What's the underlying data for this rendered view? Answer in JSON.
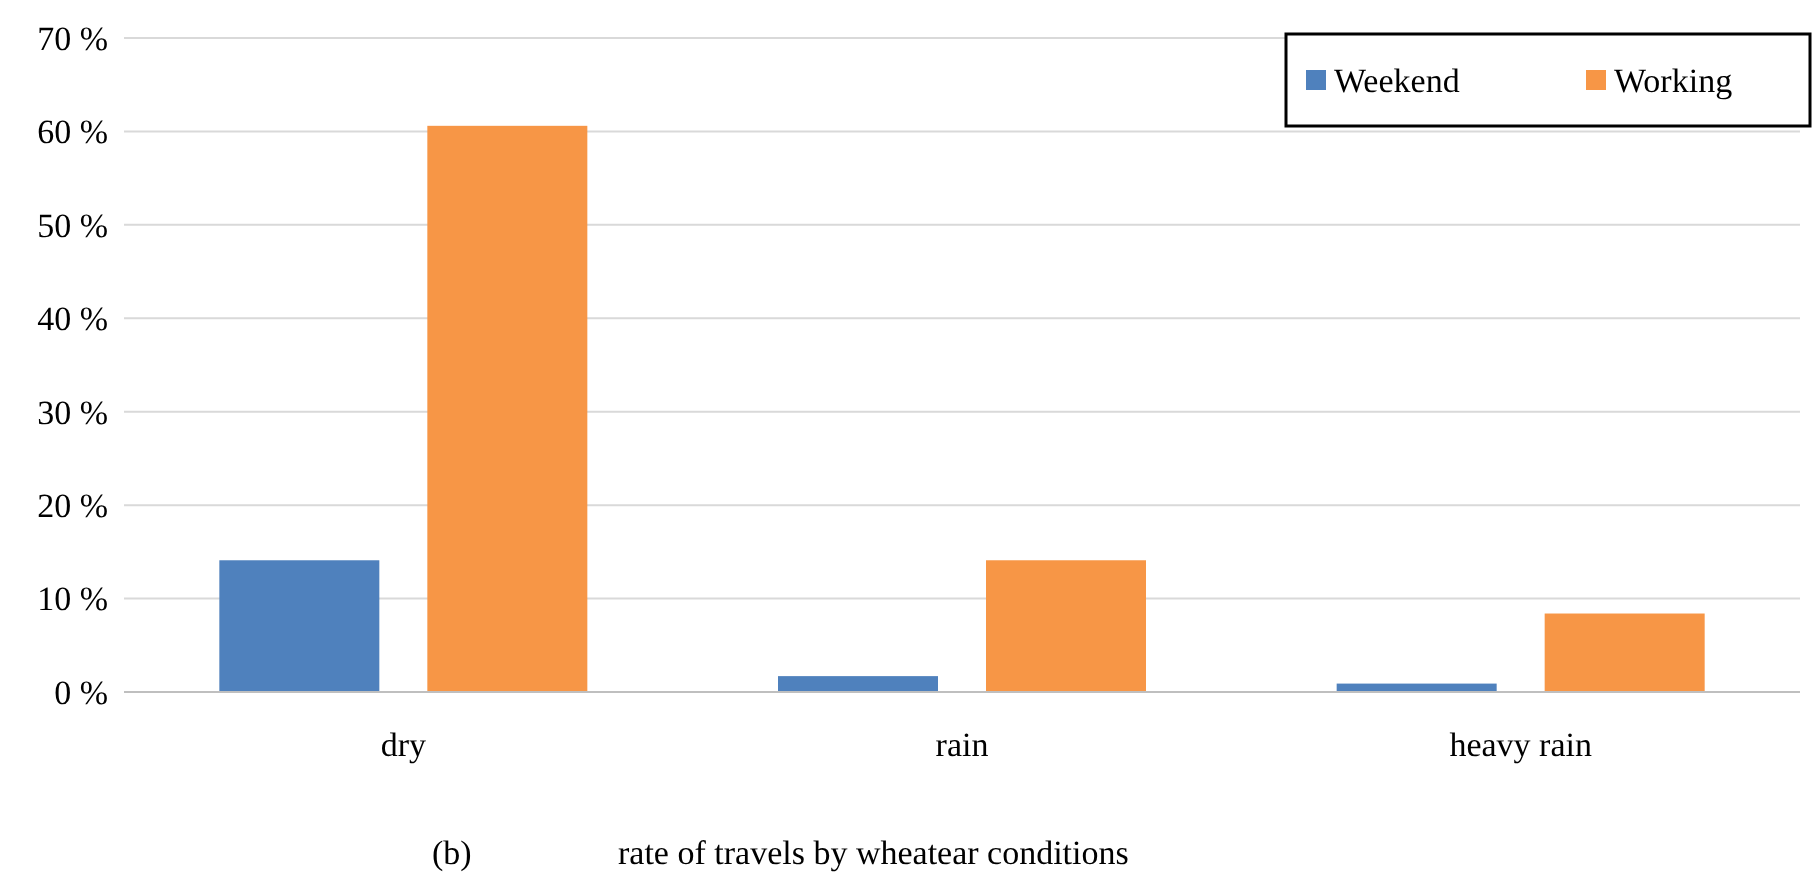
{
  "chart_data": {
    "type": "bar",
    "categories": [
      "dry",
      "rain",
      "heavy rain"
    ],
    "series": [
      {
        "name": "Weekend",
        "color": "#4f81bd",
        "values": [
          14.1,
          1.7,
          0.9
        ]
      },
      {
        "name": "Working",
        "color": "#f79646",
        "values": [
          60.6,
          14.1,
          8.4
        ]
      }
    ],
    "ylim": [
      0,
      70
    ],
    "yticks": [
      {
        "value": 0,
        "label": "0 %"
      },
      {
        "value": 10,
        "label": "10 %"
      },
      {
        "value": 20,
        "label": "20 %"
      },
      {
        "value": 30,
        "label": "30 %"
      },
      {
        "value": 40,
        "label": "40 %"
      },
      {
        "value": 50,
        "label": "50 %"
      },
      {
        "value": 60,
        "label": "60 %"
      },
      {
        "value": 70,
        "label": "70 %"
      }
    ],
    "grid": "y",
    "legend": "top right",
    "annotations": [
      "(b)",
      "rate of travels by wheatear conditions"
    ]
  }
}
